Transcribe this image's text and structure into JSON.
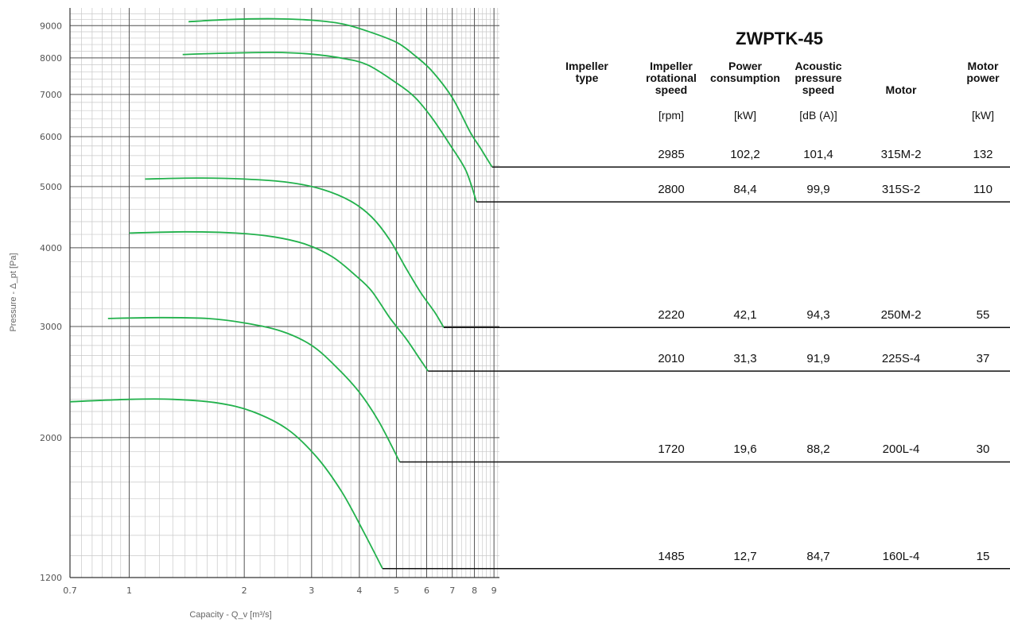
{
  "chart_data": {
    "type": "line",
    "title": "",
    "xlabel": "Capacity - Q_v [m³/s]",
    "ylabel": "Pressure - Δ_pt [Pa]",
    "x_scale": "log",
    "y_scale": "log",
    "xlim": [
      0.7,
      9.3
    ],
    "ylim": [
      1200,
      9600
    ],
    "x_ticks": [
      "0.7",
      "1",
      "2",
      "3",
      "4",
      "5",
      "6",
      "7",
      "8",
      "9"
    ],
    "y_ticks": [
      "1200",
      "2000",
      "3000",
      "4000",
      "5000",
      "6000",
      "7000",
      "8000",
      "9000"
    ],
    "grid": true,
    "series_color": "#22b14c",
    "series": [
      {
        "rpm": 2985,
        "x": [
          1.43,
          1.8,
          2.4,
          3.0,
          3.6,
          4.2,
          5.0,
          5.6,
          6.2,
          7.0,
          7.8,
          8.3,
          8.9
        ],
        "y": [
          9130,
          9200,
          9230,
          9180,
          9060,
          8820,
          8470,
          8060,
          7620,
          6920,
          6100,
          5750,
          5370
        ]
      },
      {
        "rpm": 2800,
        "x": [
          1.38,
          1.8,
          2.4,
          3.0,
          3.6,
          4.2,
          5.0,
          5.6,
          6.2,
          6.9,
          7.6,
          8.1
        ],
        "y": [
          8100,
          8140,
          8160,
          8110,
          7990,
          7800,
          7300,
          6920,
          6420,
          5830,
          5300,
          4730
        ]
      },
      {
        "rpm": 2220,
        "x": [
          1.1,
          1.5,
          2.0,
          2.6,
          3.2,
          3.8,
          4.3,
          4.8,
          5.3,
          5.8,
          6.3,
          6.65
        ],
        "y": [
          5140,
          5160,
          5140,
          5080,
          4950,
          4740,
          4480,
          4120,
          3710,
          3390,
          3160,
          2990
        ]
      },
      {
        "rpm": 2010,
        "x": [
          1.0,
          1.4,
          1.9,
          2.4,
          2.9,
          3.4,
          3.9,
          4.3,
          4.8,
          5.3,
          5.7,
          6.05
        ],
        "y": [
          4220,
          4240,
          4220,
          4160,
          4050,
          3870,
          3620,
          3420,
          3100,
          2870,
          2690,
          2550
        ]
      },
      {
        "rpm": 1720,
        "x": [
          0.88,
          1.2,
          1.6,
          2.0,
          2.5,
          3.0,
          3.5,
          4.0,
          4.5,
          5.1
        ],
        "y": [
          3090,
          3100,
          3090,
          3040,
          2950,
          2800,
          2580,
          2360,
          2120,
          1830
        ]
      },
      {
        "rpm": 1485,
        "x": [
          0.7,
          1.0,
          1.3,
          1.7,
          2.1,
          2.6,
          3.1,
          3.6,
          4.1,
          4.6
        ],
        "y": [
          2280,
          2300,
          2300,
          2270,
          2200,
          2060,
          1860,
          1640,
          1420,
          1240
        ]
      }
    ]
  },
  "table": {
    "title": "ZWPTK-45",
    "headers": [
      {
        "label": "Impeller\ntype",
        "unit": ""
      },
      {
        "label": "Impeller\nrotational\nspeed",
        "unit": "[rpm]"
      },
      {
        "label": "Power\nconsumption",
        "unit": "[kW]"
      },
      {
        "label": "Acoustic\npressure\nspeed",
        "unit": "[dB (A)]"
      },
      {
        "label": "Motor",
        "unit": ""
      },
      {
        "label": "Motor\npower",
        "unit": "[kW]"
      }
    ],
    "rows": [
      {
        "type": "",
        "speed": "2985",
        "power": "102,2",
        "acoustic": "101,4",
        "motor": "315M-2",
        "motor_power": "132"
      },
      {
        "type": "",
        "speed": "2800",
        "power": "84,4",
        "acoustic": "99,9",
        "motor": "315S-2",
        "motor_power": "110"
      },
      {
        "type": "",
        "speed": "2220",
        "power": "42,1",
        "acoustic": "94,3",
        "motor": "250M-2",
        "motor_power": "55"
      },
      {
        "type": "",
        "speed": "2010",
        "power": "31,3",
        "acoustic": "91,9",
        "motor": "225S-4",
        "motor_power": "37"
      },
      {
        "type": "",
        "speed": "1720",
        "power": "19,6",
        "acoustic": "88,2",
        "motor": "200L-4",
        "motor_power": "30"
      },
      {
        "type": "",
        "speed": "1485",
        "power": "12,7",
        "acoustic": "84,7",
        "motor": "160L-4",
        "motor_power": "15"
      }
    ]
  }
}
